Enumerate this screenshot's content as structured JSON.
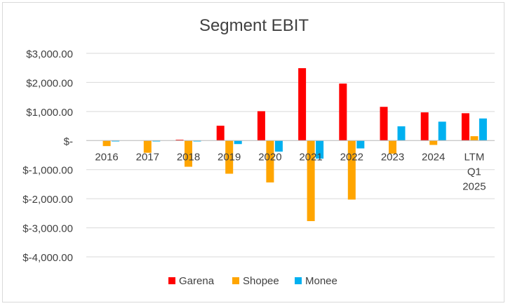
{
  "chart_data": {
    "type": "bar",
    "title": "Segment EBIT",
    "xlabel": "",
    "ylabel": "",
    "categories": [
      "2016",
      "2017",
      "2018",
      "2019",
      "2020",
      "2021",
      "2022",
      "2023",
      "2024",
      "LTM Q1 2025"
    ],
    "category_lines": [
      [
        "2016"
      ],
      [
        "2017"
      ],
      [
        "2018"
      ],
      [
        "2019"
      ],
      [
        "2020"
      ],
      [
        "2021"
      ],
      [
        "2022"
      ],
      [
        "2023"
      ],
      [
        "2024"
      ],
      [
        "LTM",
        "Q1",
        "2025"
      ]
    ],
    "series": [
      {
        "name": "Garena",
        "color": "#ff0000",
        "values": [
          0,
          0,
          30,
          510,
          1010,
          2490,
          1960,
          1160,
          970,
          940
        ]
      },
      {
        "name": "Shopee",
        "color": "#ffa500",
        "values": [
          -190,
          -420,
          -900,
          -1140,
          -1440,
          -2770,
          -2030,
          -450,
          -150,
          150
        ]
      },
      {
        "name": "Monee",
        "color": "#00b0f0",
        "values": [
          -30,
          -30,
          -30,
          -120,
          -380,
          -620,
          -270,
          490,
          650,
          760
        ]
      }
    ],
    "ylim": [
      -4000,
      3000
    ],
    "yticks": [
      3000,
      2000,
      1000,
      0,
      -1000,
      -2000,
      -3000,
      -4000
    ],
    "ytick_labels": [
      "$3,000.00",
      "$2,000.00",
      "$1,000.00",
      "$-",
      "$-1,000.00",
      "$-2,000.00",
      "$-3,000.00",
      "$-4,000.00"
    ],
    "grid": true,
    "legend_position": "bottom"
  }
}
